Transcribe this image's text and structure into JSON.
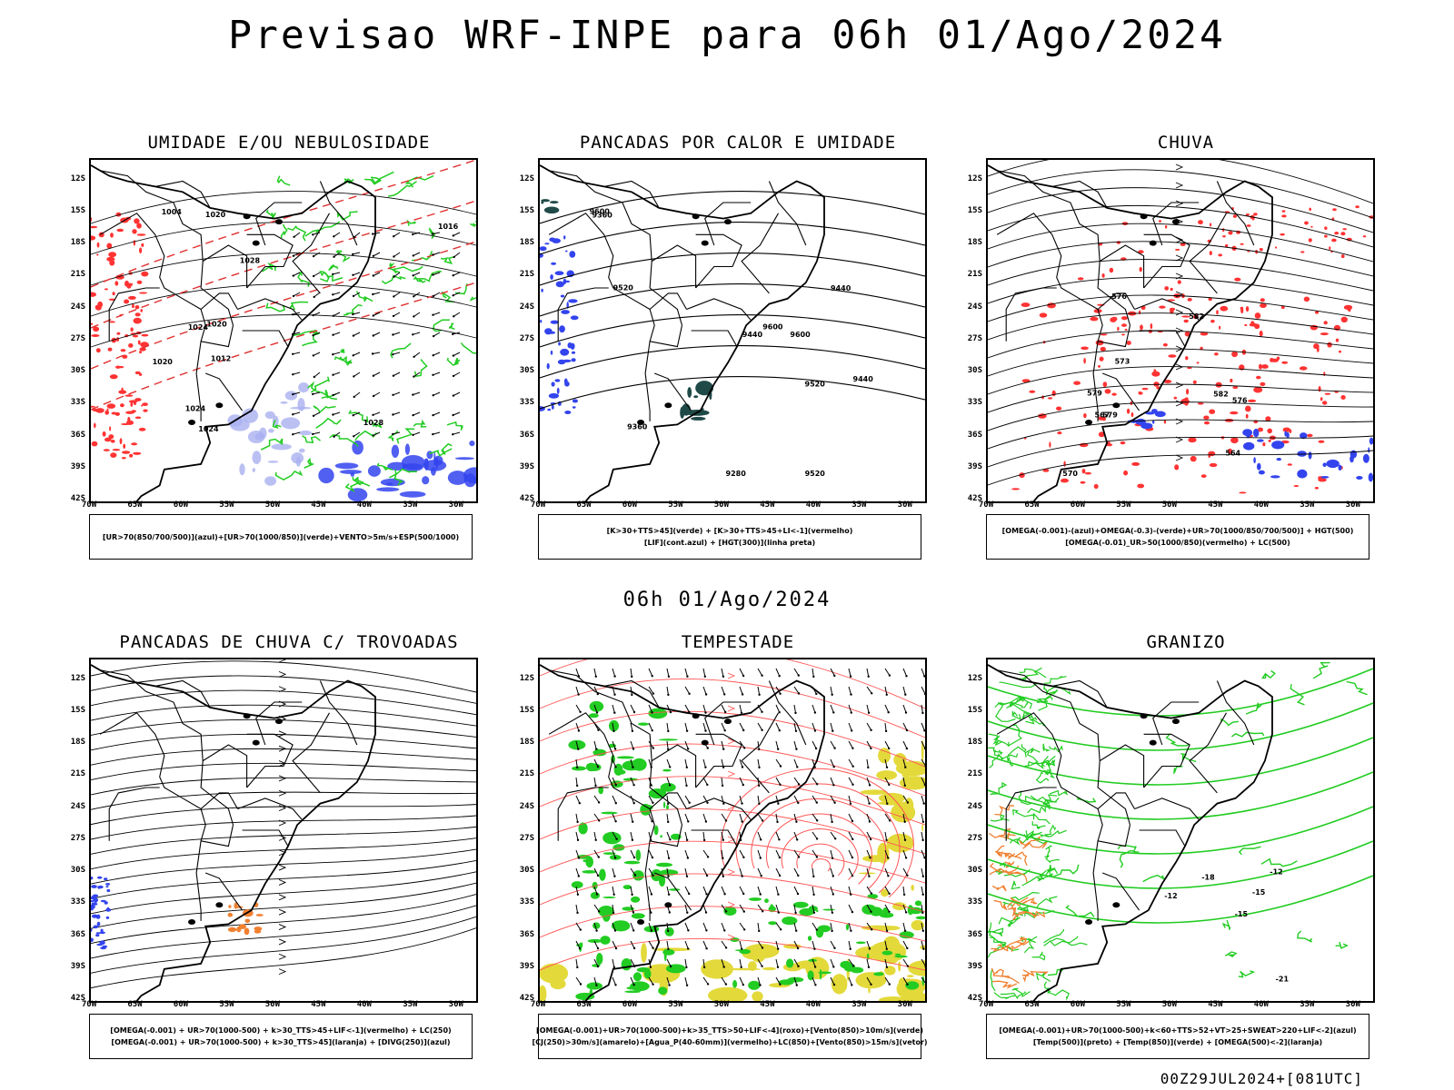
{
  "title": "Previsao WRF-INPE  para 06h 01/Ago/2024",
  "subtitle": "06h 01/Ago/2024",
  "footer": "00Z29JUL2024+[081UTC]",
  "axis": {
    "lat": [
      "12S",
      "15S",
      "18S",
      "21S",
      "24S",
      "27S",
      "30S",
      "33S",
      "36S",
      "39S",
      "42S"
    ],
    "lon": [
      "70W",
      "65W",
      "60W",
      "55W",
      "50W",
      "45W",
      "40W",
      "35W",
      "30W"
    ]
  },
  "colors": {
    "green": "#22cc22",
    "red": "#ff3333",
    "blue": "#3344ee",
    "lavender": "#aab0f0",
    "teal": "#1f4a48",
    "yellow": "#e3d93a",
    "orange": "#f08030",
    "darkgreen": "#119911"
  },
  "panels": [
    {
      "id": "umidade",
      "title": "UMIDADE E/OU NEBULOSIDADE",
      "legend": [
        "[UR>70(850/700/500)](azul)+[UR>70(1000/850)](verde)+VENTO>5m/s+ESP(500/1000)"
      ],
      "contours": [
        "1012",
        "1016",
        "1020",
        "1024",
        "1028",
        "1004",
        "1020",
        "1024",
        "1028",
        "1024",
        "1020"
      ]
    },
    {
      "id": "pancadas_calor",
      "title": "PANCADAS POR CALOR E UMIDADE",
      "legend": [
        "[K>30+TTS>45](verde) + [K>30+TTS>45+LI<-1](vermelho)",
        "[LIF](cont.azul) + [HGT(300)](linha preta)"
      ],
      "contours": [
        "9600",
        "9520",
        "9440",
        "9360",
        "9280",
        "9600",
        "9520",
        "9440",
        "9360",
        "9520",
        "9440",
        "9600"
      ]
    },
    {
      "id": "chuva",
      "title": "CHUVA",
      "legend": [
        "[OMEGA(-0.001)-(azul)+OMEGA(-0.3)-(verde)+UR>70(1000/850/700/500)] + HGT(500)",
        "[OMEGA(-0.01)_UR>50(1000/850)(vermelho) + LC(500)"
      ],
      "contours": [
        "582",
        "579",
        "576",
        "573",
        "570",
        "567",
        "564",
        "576",
        "579",
        "582"
      ]
    },
    {
      "id": "trovoadas",
      "title": "PANCADAS DE CHUVA C/ TROVOADAS",
      "legend": [
        "[OMEGA(-0.001) + UR>70(1000-500) + k>30_TTS>45+LIF<-1](vermelho) + LC(250)",
        "[OMEGA(-0.001) + UR>70(1000-500) + k>30_TTS>45](laranja) + [DIVG(250)](azul)"
      ],
      "contours": []
    },
    {
      "id": "tempestade",
      "title": "TEMPESTADE",
      "legend": [
        "[OMEGA(-0.001)+UR>70(1000-500)+k>35_TTS>50+LIF<-4](roxo)+[Vento(850)>10m/s](verde)",
        "[CJ(250)>30m/s](amarelo)+[Agua_P(40-60mm)](vermelho)+LC(850)+[Vento(850)>15m/s](vetor)"
      ],
      "contours": []
    },
    {
      "id": "granizo",
      "title": "GRANIZO",
      "legend": [
        "[OMEGA(-0.001)+UR>70(1000-500)+k<60+TTS>52+VT>25+SWEAT>220+LIF<-2](azul)",
        "[Temp(500)](preto) + [Temp(850)](verde) + [OMEGA(500)<-2](laranja)"
      ],
      "contours": [
        "-12",
        "-15",
        "-18",
        "-21",
        "-12",
        "-15"
      ]
    }
  ]
}
